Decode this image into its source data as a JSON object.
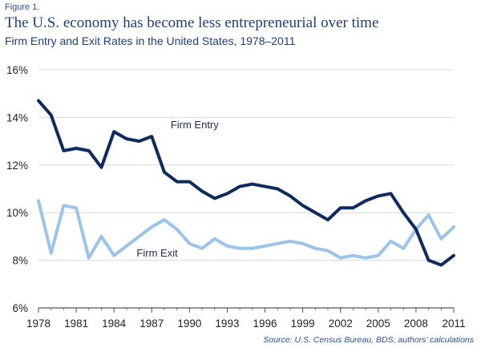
{
  "figure_label": "Figure 1.",
  "title": "The U.S. economy has become less entrepreneurial over time",
  "source": "Source: U.S. Census Bureau, BDS; authors’ calculations",
  "colors": {
    "entry": "#0d2b5e",
    "exit": "#9cc3ea",
    "grid": "#d9d9d9",
    "axis": "#555555"
  },
  "chart_data": {
    "type": "line",
    "title": "Firm Entry and Exit Rates in the United States, 1978–2011",
    "xlabel": "",
    "ylabel": "",
    "xlim": [
      1978,
      2011
    ],
    "ylim": [
      6,
      16
    ],
    "grid": "horizontal",
    "x_ticks": [
      "1978",
      "1981",
      "1984",
      "1987",
      "1990",
      "1993",
      "1996",
      "1999",
      "2002",
      "2005",
      "2008",
      "2011"
    ],
    "y_ticks": [
      "6%",
      "8%",
      "10%",
      "12%",
      "14%",
      "16%"
    ],
    "x": [
      1978,
      1979,
      1980,
      1981,
      1982,
      1983,
      1984,
      1985,
      1986,
      1987,
      1988,
      1989,
      1990,
      1991,
      1992,
      1993,
      1994,
      1995,
      1996,
      1997,
      1998,
      1999,
      2000,
      2001,
      2002,
      2003,
      2004,
      2005,
      2006,
      2007,
      2008,
      2009,
      2010,
      2011
    ],
    "series": [
      {
        "name": "Firm Entry",
        "color": "#0d2b5e",
        "values": [
          14.7,
          14.1,
          12.6,
          12.7,
          12.6,
          11.9,
          13.4,
          13.1,
          13.0,
          13.2,
          11.7,
          11.3,
          11.3,
          10.9,
          10.6,
          10.8,
          11.1,
          11.2,
          11.1,
          11.0,
          10.7,
          10.3,
          10.0,
          9.7,
          10.2,
          10.2,
          10.5,
          10.7,
          10.8,
          10.0,
          9.3,
          8.0,
          7.8,
          8.2
        ]
      },
      {
        "name": "Firm Exit",
        "color": "#9cc3ea",
        "values": [
          10.5,
          8.3,
          10.3,
          10.2,
          8.1,
          9.0,
          8.2,
          8.6,
          9.0,
          9.4,
          9.7,
          9.3,
          8.7,
          8.5,
          8.9,
          8.6,
          8.5,
          8.5,
          8.6,
          8.7,
          8.8,
          8.7,
          8.5,
          8.4,
          8.1,
          8.2,
          8.1,
          8.2,
          8.8,
          8.5,
          9.3,
          9.9,
          8.9,
          9.4
        ]
      }
    ]
  }
}
